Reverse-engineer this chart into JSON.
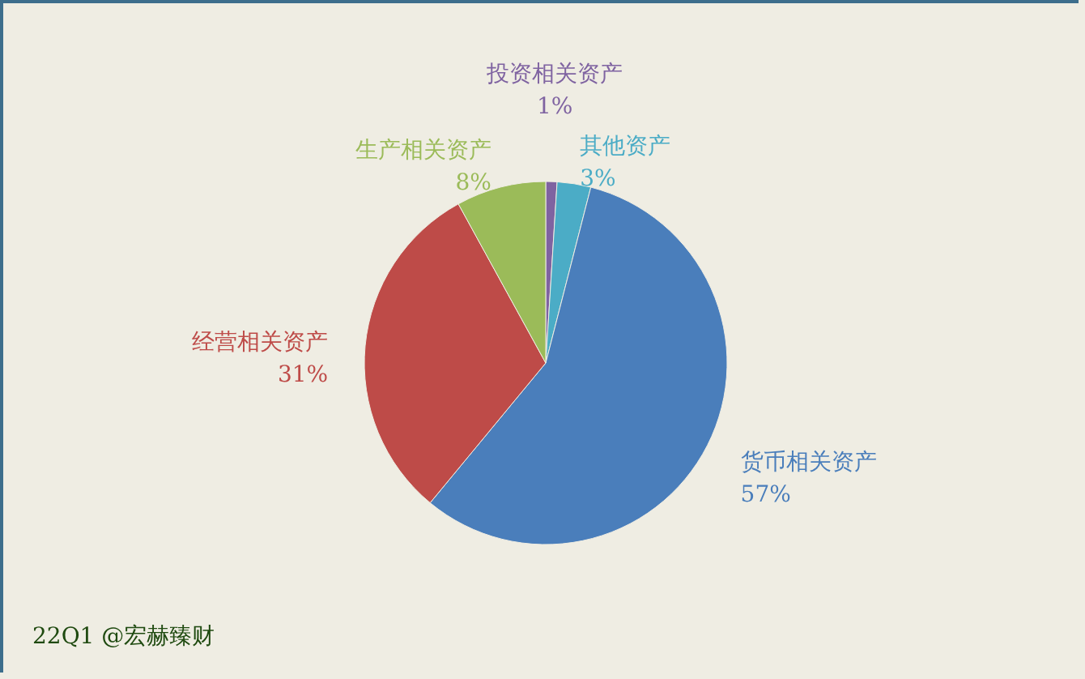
{
  "chart_data": {
    "type": "pie",
    "categories": [
      "投资相关资产",
      "其他资产",
      "货币相关资产",
      "经营相关资产",
      "生产相关资产"
    ],
    "values": [
      1,
      3,
      57,
      31,
      8
    ],
    "value_labels": [
      "1%",
      "3%",
      "57%",
      "31%",
      "8%"
    ],
    "colors": [
      "#7f63a1",
      "#4bacc6",
      "#4a7ebb",
      "#be4b48",
      "#9bbb59"
    ],
    "annotations": [
      "22Q1 @宏赫臻财"
    ]
  }
}
